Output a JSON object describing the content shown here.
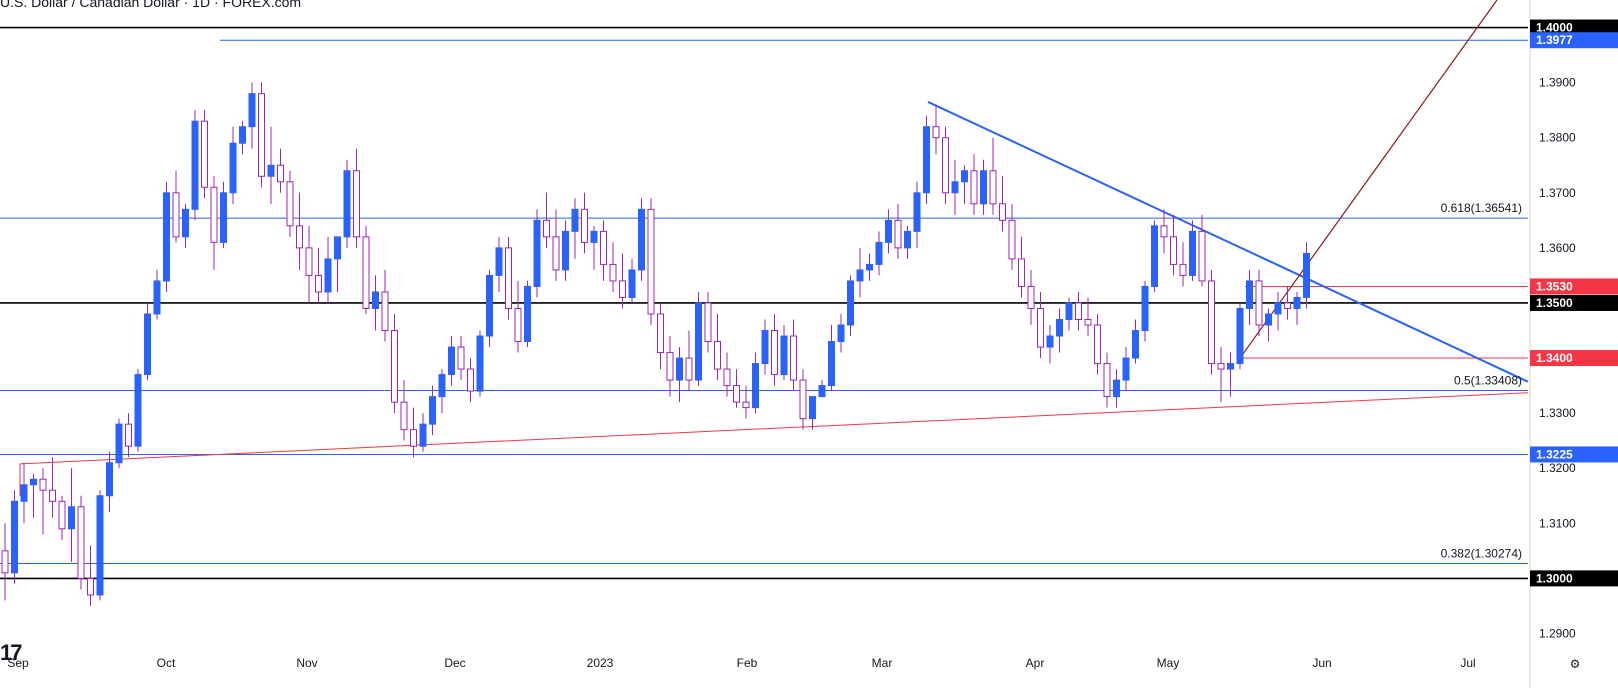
{
  "chart_title": "U.S. Dollar / Canadian Dollar · 1D · FOREX.com",
  "logo_text": "17",
  "colors": {
    "up_candle": "#2962ff",
    "down_candle": "#ffffff",
    "candle_outline": "#9c27b0",
    "blue_line": "#2962ff",
    "black_line": "#000000",
    "red_line": "#f23645",
    "dark_red_line": "#8b1a1a"
  },
  "chart_data": {
    "type": "candlestick",
    "title": "U.S. Dollar / Canadian Dollar · 1D · FOREX.com",
    "y_axis": {
      "min": 1.287,
      "max": 1.405,
      "ticks": [
        "1.2900",
        "1.3000",
        "1.3100",
        "1.3200",
        "1.3300",
        "1.3400",
        "1.3500",
        "1.3600",
        "1.3700",
        "1.3800",
        "1.3900",
        "1.4000"
      ]
    },
    "x_axis": {
      "labels": [
        "Sep",
        "Oct",
        "Nov",
        "Dec",
        "2023",
        "Feb",
        "Mar",
        "Apr",
        "May",
        "Jun",
        "Jul"
      ]
    },
    "price_labels": [
      {
        "text": "1.4000",
        "value": 1.4,
        "color": "#000000"
      },
      {
        "text": "1.3977",
        "value": 1.3977,
        "color": "#2962ff"
      },
      {
        "text": "1.3530",
        "value": 1.353,
        "color": "#f23645"
      },
      {
        "text": "1.3500",
        "value": 1.35,
        "color": "#000000"
      },
      {
        "text": "1.3400",
        "value": 1.34,
        "color": "#f23645"
      },
      {
        "text": "1.3225",
        "value": 1.3225,
        "color": "#2962ff"
      },
      {
        "text": "1.3000",
        "value": 1.3,
        "color": "#000000"
      }
    ],
    "fib_levels": [
      {
        "label": "0.618(1.36541)",
        "value": 1.36541
      },
      {
        "label": "0.5(1.33408)",
        "value": 1.33408
      },
      {
        "label": "0.382(1.30274)",
        "value": 1.30274
      }
    ],
    "horizontal_levels": [
      {
        "value": 1.4,
        "color": "#000000"
      },
      {
        "value": 1.3977,
        "color": "#2962ff"
      },
      {
        "value": 1.3654,
        "color": "#2962ff"
      },
      {
        "value": 1.35,
        "color": "#000000"
      },
      {
        "value": 1.3341,
        "color": "#2962ff"
      },
      {
        "value": 1.3225,
        "color": "#2962ff"
      },
      {
        "value": 1.3027,
        "color": "#2962ff"
      },
      {
        "value": 1.3,
        "color": "#000000"
      }
    ],
    "candles": [
      [
        1.305,
        1.31,
        1.296,
        1.301
      ],
      [
        1.301,
        1.316,
        1.299,
        1.314
      ],
      [
        1.314,
        1.321,
        1.31,
        1.317
      ],
      [
        1.317,
        1.319,
        1.311,
        1.318
      ],
      [
        1.318,
        1.32,
        1.308,
        1.316
      ],
      [
        1.316,
        1.322,
        1.311,
        1.314
      ],
      [
        1.314,
        1.315,
        1.307,
        1.309
      ],
      [
        1.309,
        1.32,
        1.303,
        1.313
      ],
      [
        1.313,
        1.315,
        1.298,
        1.3
      ],
      [
        1.3,
        1.306,
        1.295,
        1.297
      ],
      [
        1.297,
        1.316,
        1.296,
        1.315
      ],
      [
        1.315,
        1.323,
        1.312,
        1.321
      ],
      [
        1.321,
        1.329,
        1.32,
        1.328
      ],
      [
        1.328,
        1.33,
        1.322,
        1.324
      ],
      [
        1.324,
        1.338,
        1.323,
        1.337
      ],
      [
        1.337,
        1.35,
        1.336,
        1.348
      ],
      [
        1.348,
        1.356,
        1.347,
        1.354
      ],
      [
        1.354,
        1.372,
        1.352,
        1.37
      ],
      [
        1.37,
        1.374,
        1.361,
        1.362
      ],
      [
        1.362,
        1.368,
        1.36,
        1.367
      ],
      [
        1.367,
        1.385,
        1.365,
        1.383
      ],
      [
        1.383,
        1.385,
        1.369,
        1.371
      ],
      [
        1.371,
        1.373,
        1.356,
        1.361
      ],
      [
        1.361,
        1.372,
        1.36,
        1.37
      ],
      [
        1.37,
        1.382,
        1.368,
        1.379
      ],
      [
        1.379,
        1.383,
        1.377,
        1.382
      ],
      [
        1.382,
        1.39,
        1.378,
        1.388
      ],
      [
        1.388,
        1.39,
        1.371,
        1.373
      ],
      [
        1.373,
        1.382,
        1.368,
        1.375
      ],
      [
        1.375,
        1.378,
        1.37,
        1.372
      ],
      [
        1.372,
        1.374,
        1.362,
        1.364
      ],
      [
        1.364,
        1.37,
        1.356,
        1.36
      ],
      [
        1.36,
        1.364,
        1.35,
        1.355
      ],
      [
        1.355,
        1.36,
        1.35,
        1.352
      ],
      [
        1.352,
        1.362,
        1.35,
        1.358
      ],
      [
        1.358,
        1.362,
        1.352,
        1.362
      ],
      [
        1.362,
        1.376,
        1.36,
        1.374
      ],
      [
        1.374,
        1.378,
        1.36,
        1.362
      ],
      [
        1.362,
        1.364,
        1.348,
        1.349
      ],
      [
        1.349,
        1.355,
        1.345,
        1.352
      ],
      [
        1.352,
        1.356,
        1.343,
        1.345
      ],
      [
        1.345,
        1.348,
        1.33,
        1.332
      ],
      [
        1.332,
        1.336,
        1.325,
        1.327
      ],
      [
        1.327,
        1.331,
        1.322,
        1.324
      ],
      [
        1.324,
        1.33,
        1.323,
        1.328
      ],
      [
        1.328,
        1.335,
        1.326,
        1.333
      ],
      [
        1.333,
        1.338,
        1.33,
        1.337
      ],
      [
        1.337,
        1.344,
        1.335,
        1.342
      ],
      [
        1.342,
        1.344,
        1.336,
        1.338
      ],
      [
        1.338,
        1.34,
        1.332,
        1.334
      ],
      [
        1.334,
        1.345,
        1.333,
        1.344
      ],
      [
        1.344,
        1.356,
        1.342,
        1.355
      ],
      [
        1.355,
        1.362,
        1.352,
        1.36
      ],
      [
        1.36,
        1.362,
        1.347,
        1.349
      ],
      [
        1.349,
        1.354,
        1.341,
        1.343
      ],
      [
        1.343,
        1.354,
        1.342,
        1.353
      ],
      [
        1.353,
        1.367,
        1.351,
        1.365
      ],
      [
        1.365,
        1.37,
        1.36,
        1.362
      ],
      [
        1.362,
        1.367,
        1.354,
        1.356
      ],
      [
        1.356,
        1.365,
        1.354,
        1.363
      ],
      [
        1.363,
        1.369,
        1.358,
        1.367
      ],
      [
        1.367,
        1.37,
        1.359,
        1.361
      ],
      [
        1.361,
        1.364,
        1.356,
        1.363
      ],
      [
        1.363,
        1.365,
        1.354,
        1.357
      ],
      [
        1.357,
        1.361,
        1.352,
        1.354
      ],
      [
        1.354,
        1.359,
        1.349,
        1.351
      ],
      [
        1.351,
        1.358,
        1.35,
        1.356
      ],
      [
        1.356,
        1.369,
        1.354,
        1.367
      ],
      [
        1.367,
        1.369,
        1.346,
        1.348
      ],
      [
        1.348,
        1.35,
        1.338,
        1.341
      ],
      [
        1.341,
        1.344,
        1.333,
        1.336
      ],
      [
        1.336,
        1.342,
        1.332,
        1.34
      ],
      [
        1.34,
        1.345,
        1.334,
        1.336
      ],
      [
        1.336,
        1.352,
        1.335,
        1.35
      ],
      [
        1.35,
        1.352,
        1.341,
        1.343
      ],
      [
        1.343,
        1.348,
        1.336,
        1.338
      ],
      [
        1.338,
        1.341,
        1.333,
        1.335
      ],
      [
        1.335,
        1.338,
        1.331,
        1.332
      ],
      [
        1.332,
        1.335,
        1.329,
        1.331
      ],
      [
        1.331,
        1.341,
        1.33,
        1.339
      ],
      [
        1.339,
        1.347,
        1.337,
        1.345
      ],
      [
        1.345,
        1.348,
        1.335,
        1.337
      ],
      [
        1.337,
        1.346,
        1.336,
        1.344
      ],
      [
        1.344,
        1.347,
        1.334,
        1.336
      ],
      [
        1.336,
        1.338,
        1.327,
        1.329
      ],
      [
        1.329,
        1.333,
        1.327,
        1.333
      ],
      [
        1.333,
        1.336,
        1.333,
        1.335
      ],
      [
        1.335,
        1.346,
        1.334,
        1.343
      ],
      [
        1.343,
        1.348,
        1.341,
        1.346
      ],
      [
        1.346,
        1.355,
        1.344,
        1.354
      ],
      [
        1.354,
        1.36,
        1.351,
        1.356
      ],
      [
        1.356,
        1.359,
        1.354,
        1.357
      ],
      [
        1.357,
        1.363,
        1.355,
        1.361
      ],
      [
        1.361,
        1.367,
        1.359,
        1.365
      ],
      [
        1.365,
        1.368,
        1.358,
        1.36
      ],
      [
        1.36,
        1.364,
        1.358,
        1.363
      ],
      [
        1.363,
        1.372,
        1.36,
        1.37
      ],
      [
        1.37,
        1.384,
        1.368,
        1.382
      ],
      [
        1.382,
        1.386,
        1.377,
        1.38
      ],
      [
        1.38,
        1.382,
        1.368,
        1.37
      ],
      [
        1.37,
        1.376,
        1.366,
        1.372
      ],
      [
        1.372,
        1.375,
        1.368,
        1.374
      ],
      [
        1.374,
        1.377,
        1.366,
        1.368
      ],
      [
        1.368,
        1.376,
        1.366,
        1.374
      ],
      [
        1.374,
        1.38,
        1.366,
        1.368
      ],
      [
        1.368,
        1.373,
        1.363,
        1.365
      ],
      [
        1.365,
        1.368,
        1.356,
        1.358
      ],
      [
        1.358,
        1.362,
        1.351,
        1.353
      ],
      [
        1.353,
        1.356,
        1.346,
        1.349
      ],
      [
        1.349,
        1.352,
        1.34,
        1.342
      ],
      [
        1.342,
        1.346,
        1.339,
        1.344
      ],
      [
        1.344,
        1.349,
        1.341,
        1.347
      ],
      [
        1.347,
        1.351,
        1.345,
        1.35
      ],
      [
        1.35,
        1.352,
        1.345,
        1.347
      ],
      [
        1.347,
        1.351,
        1.344,
        1.346
      ],
      [
        1.346,
        1.348,
        1.337,
        1.339
      ],
      [
        1.339,
        1.341,
        1.331,
        1.333
      ],
      [
        1.333,
        1.338,
        1.331,
        1.336
      ],
      [
        1.336,
        1.342,
        1.334,
        1.34
      ],
      [
        1.34,
        1.347,
        1.339,
        1.345
      ],
      [
        1.345,
        1.354,
        1.343,
        1.353
      ],
      [
        1.353,
        1.365,
        1.352,
        1.364
      ],
      [
        1.364,
        1.367,
        1.359,
        1.362
      ],
      [
        1.362,
        1.366,
        1.355,
        1.357
      ],
      [
        1.357,
        1.361,
        1.353,
        1.355
      ],
      [
        1.355,
        1.365,
        1.354,
        1.363
      ],
      [
        1.363,
        1.366,
        1.353,
        1.354
      ],
      [
        1.354,
        1.356,
        1.337,
        1.339
      ],
      [
        1.339,
        1.342,
        1.332,
        1.338
      ],
      [
        1.338,
        1.341,
        1.333,
        1.339
      ],
      [
        1.339,
        1.35,
        1.338,
        1.349
      ],
      [
        1.349,
        1.356,
        1.346,
        1.354
      ],
      [
        1.354,
        1.356,
        1.344,
        1.346
      ],
      [
        1.346,
        1.349,
        1.343,
        1.348
      ],
      [
        1.348,
        1.352,
        1.345,
        1.35
      ],
      [
        1.35,
        1.353,
        1.347,
        1.349
      ],
      [
        1.349,
        1.352,
        1.346,
        1.351
      ],
      [
        1.351,
        1.361,
        1.349,
        1.359
      ]
    ]
  }
}
